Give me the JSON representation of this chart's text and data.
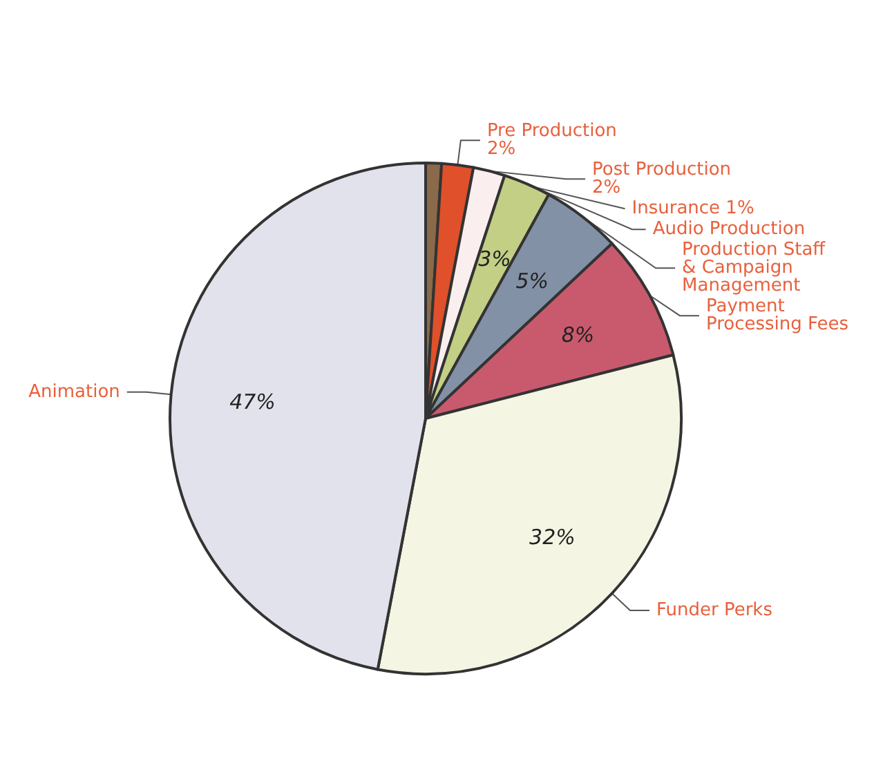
{
  "chart_data": {
    "type": "pie",
    "categories": [
      "Insurance",
      "Pre Production",
      "Post Production",
      "Audio Production",
      "Production Staff & Campaign Management",
      "Payment Processing Fees",
      "Funder Perks",
      "Animation"
    ],
    "values": [
      1,
      2,
      2,
      3,
      5,
      8,
      32,
      47
    ],
    "value_labels": [
      "1%",
      "2%",
      "2%",
      "3%",
      "5%",
      "8%",
      "32%",
      "47%"
    ],
    "colors": [
      "#8a6a4a",
      "#e0502a",
      "#fbeeee",
      "#c2cf85",
      "#8391a6",
      "#c95a6e",
      "#f5f5e4",
      "#e2e2ec"
    ]
  }
}
